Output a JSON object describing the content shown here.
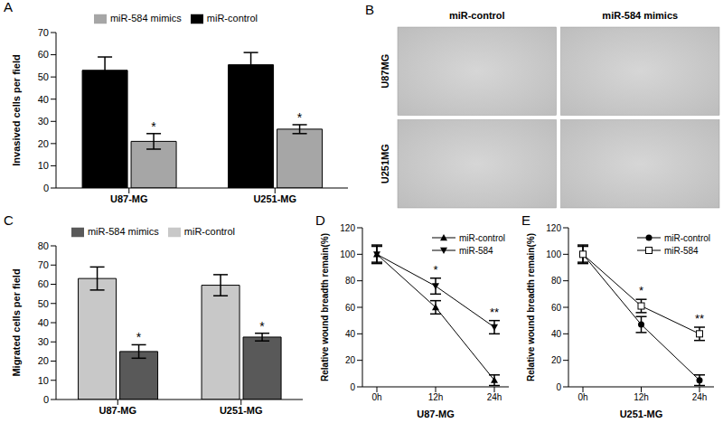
{
  "chart_data": [
    {
      "panel_label": "A",
      "type": "bar",
      "y_label": "Invasived cells per field",
      "categories": [
        "U87-MG",
        "U251-MG"
      ],
      "series": [
        {
          "name": "miR-control",
          "color": "#000000",
          "values": [
            53,
            55.5
          ],
          "errors": [
            6,
            5.5
          ]
        },
        {
          "name": "miR-584 mimics",
          "color": "#a6a6a6",
          "values": [
            21,
            26.5
          ],
          "errors": [
            3.5,
            2
          ],
          "annotations": [
            "*",
            "*"
          ]
        }
      ],
      "ylim": [
        0,
        70
      ],
      "yticks": [
        0,
        10,
        20,
        30,
        40,
        50,
        60,
        70
      ],
      "legend": "top"
    },
    {
      "panel_label": "C",
      "type": "bar",
      "y_label": "Migrated cells per field",
      "categories": [
        "U87-MG",
        "U251-MG"
      ],
      "series": [
        {
          "name": "miR-control",
          "color": "#c8c8c8",
          "values": [
            63,
            59.5
          ],
          "errors": [
            6,
            5.5
          ]
        },
        {
          "name": "miR-584 mimics",
          "color": "#595959",
          "values": [
            25,
            32.5
          ],
          "errors": [
            3.5,
            2
          ],
          "annotations": [
            "*",
            "*"
          ]
        }
      ],
      "ylim": [
        0,
        80
      ],
      "yticks": [
        0,
        10,
        20,
        30,
        40,
        50,
        60,
        70,
        80
      ],
      "legend": "top"
    },
    {
      "panel_label": "D",
      "type": "line",
      "x_label": "U87-MG",
      "y_label": "Relative wound breadth remain(%)",
      "categories": [
        "0h",
        "12h",
        "24h"
      ],
      "series": [
        {
          "name": "miR-control",
          "color": "#000000",
          "marker": "triangle-up",
          "values": [
            100,
            60,
            5
          ],
          "errors": [
            7,
            5,
            4
          ]
        },
        {
          "name": "miR-584",
          "color": "#000000",
          "marker": "triangle-down",
          "values": [
            100,
            76,
            45
          ],
          "errors": [
            6,
            6,
            5
          ],
          "annotations": [
            null,
            "*",
            "**"
          ]
        }
      ],
      "ylim": [
        0,
        120
      ],
      "yticks": [
        0,
        20,
        40,
        60,
        80,
        100,
        120
      ],
      "legend": "upper right"
    },
    {
      "panel_label": "E",
      "type": "line",
      "x_label": "U251-MG",
      "y_label": "Relative wound breadth remain(%)",
      "categories": [
        "0h",
        "12h",
        "24h"
      ],
      "series": [
        {
          "name": "miR-control",
          "color": "#000000",
          "marker": "circle",
          "values": [
            100,
            47,
            5
          ],
          "errors": [
            7,
            6,
            4
          ]
        },
        {
          "name": "miR-584",
          "color": "#000000",
          "marker": "square-open",
          "values": [
            100,
            61,
            40
          ],
          "errors": [
            6,
            5,
            5
          ],
          "annotations": [
            null,
            "*",
            "**"
          ]
        }
      ],
      "ylim": [
        0,
        120
      ],
      "yticks": [
        0,
        20,
        40,
        60,
        80,
        100,
        120
      ],
      "legend": "upper right"
    }
  ],
  "image_panel": {
    "panel_label": "B",
    "columns": [
      "miR-control",
      "miR-584 mimics"
    ],
    "rows": [
      "U87MG",
      "U251MG"
    ]
  }
}
